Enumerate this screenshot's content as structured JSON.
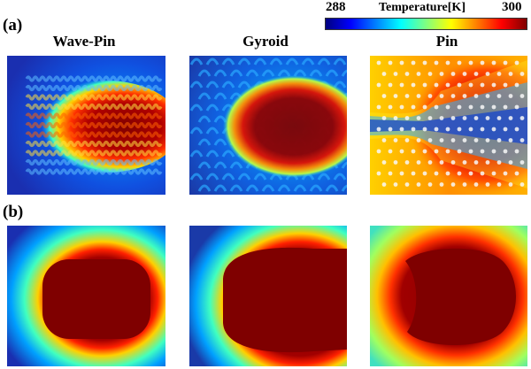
{
  "colorbar": {
    "title": "Temperature[K]",
    "min_label": "288",
    "max_label": "300",
    "colors": [
      "#00007f",
      "#0000ff",
      "#0080ff",
      "#00ffff",
      "#80ff80",
      "#ffff00",
      "#ff8000",
      "#ff0000",
      "#7f0000"
    ]
  },
  "rows": [
    {
      "label": "(a)"
    },
    {
      "label": "(b)"
    }
  ],
  "columns": [
    {
      "title": "Wave-Pin"
    },
    {
      "title": "Gyroid"
    },
    {
      "title": "Pin"
    }
  ]
}
